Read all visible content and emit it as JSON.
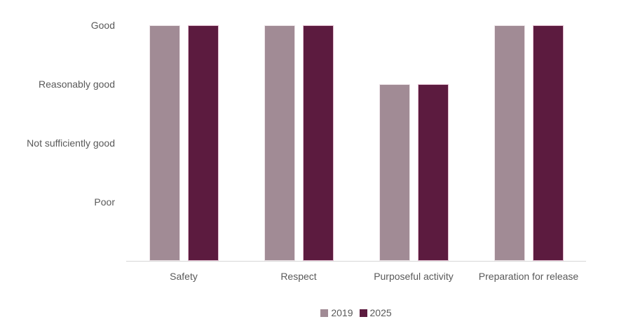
{
  "chart_data": {
    "type": "bar",
    "categories": [
      "Safety",
      "Respect",
      "Purposeful activity",
      "Preparation for release"
    ],
    "series": [
      {
        "name": "2019",
        "color": "#A18B95",
        "border_color": "#EDE4E8",
        "values": [
          4,
          4,
          3,
          4
        ],
        "ratings": [
          "Good",
          "Good",
          "Reasonably good",
          "Good"
        ]
      },
      {
        "name": "2025",
        "color": "#5C1B3F",
        "border_color": "#E3BED0",
        "values": [
          4,
          4,
          3,
          4
        ],
        "ratings": [
          "Good",
          "Good",
          "Reasonably good",
          "Good"
        ]
      }
    ],
    "y_ticks": [
      {
        "label": "Good",
        "value": 4
      },
      {
        "label": "Reasonably good",
        "value": 3
      },
      {
        "label": "Not sufficiently good",
        "value": 2
      },
      {
        "label": "Poor",
        "value": 1
      }
    ],
    "ylim": [
      0,
      4
    ],
    "title": "",
    "xlabel": "",
    "ylabel": "",
    "grid": false,
    "legend_position": "bottom-center",
    "axis_line_color": "#d6d6d6",
    "text_color": "#595959",
    "background_color": "#ffffff"
  }
}
